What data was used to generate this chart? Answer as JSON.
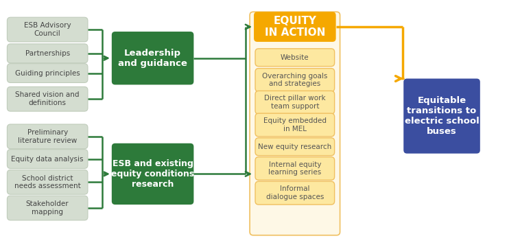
{
  "fig_width": 7.58,
  "fig_height": 3.54,
  "bg_color": "#ffffff",
  "top_small_labels": [
    "ESB Advisory\nCouncil",
    "Partnerships",
    "Guiding principles",
    "Shared vision and\ndefinitions"
  ],
  "bot_small_labels": [
    "Preliminary\nliterature review",
    "Equity data analysis",
    "School district\nneeds assessment",
    "Stakeholder\nmapping"
  ],
  "mid_top_label": "Leadership\nand guidance",
  "mid_bot_label": "ESB and existing\nequity conditions\nresearch",
  "center_header_label": "EQUITY\nIN ACTION",
  "center_items": [
    "Website",
    "Overarching goals\nand strategies",
    "Direct pillar work\nteam support",
    "Equity embedded\nin MEL",
    "New equity research",
    "Internal equity\nlearning series",
    "Informal\ndialogue spaces"
  ],
  "right_label": "Equitable\ntransitions to\nelectric school\nbuses",
  "small_box_fill": "#d4ddd0",
  "small_box_edge": "#c0ccbb",
  "small_text_color": "#444444",
  "mid_box_fill": "#2d7a3a",
  "mid_text_color": "#ffffff",
  "center_header_fill": "#f5a800",
  "center_header_text": "#ffffff",
  "center_bg_fill": "#fef8e6",
  "center_bg_edge": "#f0c060",
  "center_item_fill": "#fde8a0",
  "center_item_edge": "#f0c060",
  "center_item_text": "#555555",
  "right_fill": "#3b4ea0",
  "right_text": "#ffffff",
  "green": "#2d7a3a",
  "orange": "#f5a800"
}
